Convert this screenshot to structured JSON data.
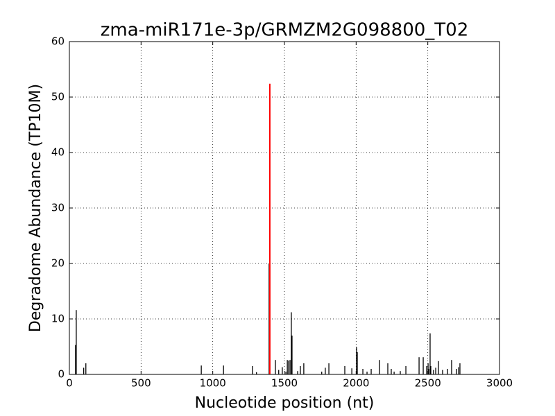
{
  "chart_data": {
    "type": "spike",
    "title": "zma-miR171e-3p/GRMZM2G098800_T02",
    "x_label": "Nucleotide position (nt)",
    "y_label": "Degradome Abundance (TP10M)",
    "xlim": [
      0,
      3000
    ],
    "ylim": [
      0,
      60
    ],
    "xticks": [
      0,
      500,
      1000,
      1500,
      2000,
      2500,
      3000
    ],
    "yticks": [
      0,
      10,
      20,
      30,
      40,
      50,
      60
    ],
    "grid": true,
    "series": [
      {
        "color": "#000000",
        "x": [
          43,
          48,
          100,
          115,
          920,
          1075,
          1277,
          1305,
          1393,
          1437,
          1460,
          1485,
          1510,
          1520,
          1529,
          1539,
          1548,
          1553,
          1592,
          1611,
          1635,
          1760,
          1785,
          1810,
          1921,
          1970,
          2003,
          2008,
          2047,
          2076,
          2105,
          2163,
          2221,
          2245,
          2265,
          2308,
          2347,
          2439,
          2468,
          2492,
          2502,
          2506,
          2516,
          2521,
          2540,
          2555,
          2574,
          2603,
          2637,
          2666,
          2700,
          2715,
          2724
        ],
        "values": [
          5.3,
          11.6,
          1.2,
          2,
          1.6,
          1.6,
          1.5,
          0.4,
          20,
          2.6,
          0.8,
          1.3,
          0.5,
          2.6,
          2.5,
          2.6,
          11.2,
          7,
          0.6,
          1.5,
          2,
          0.5,
          1.2,
          2,
          1.5,
          1.1,
          4.9,
          4,
          1,
          0.5,
          1,
          2.6,
          2,
          1,
          0.5,
          0.6,
          1.5,
          3.1,
          3.1,
          1.5,
          2,
          1,
          7.4,
          1.5,
          0.8,
          1.2,
          2.4,
          0.8,
          1,
          2.6,
          1,
          1.3,
          2
        ]
      },
      {
        "color": "#ff0000",
        "x": [
          1398
        ],
        "values": [
          52.4
        ]
      }
    ]
  }
}
